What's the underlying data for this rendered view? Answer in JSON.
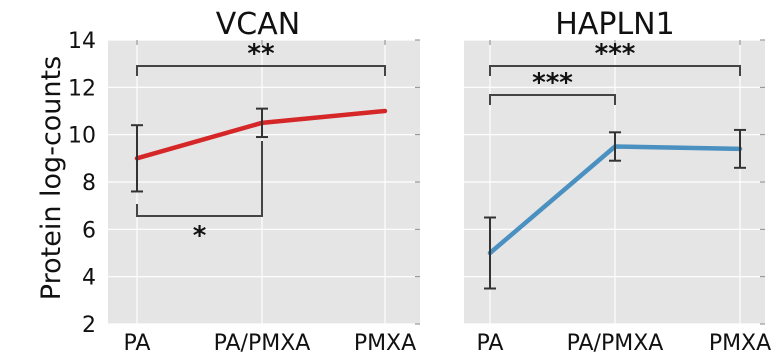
{
  "chart_data": [
    {
      "type": "line",
      "title": "VCAN",
      "ylabel": "Protein log-counts",
      "xlabel": "",
      "categories": [
        "PA",
        "PA/PMXA",
        "PMXA"
      ],
      "values": [
        9.0,
        10.5,
        11.0
      ],
      "error_low": [
        7.6,
        9.9,
        11.0
      ],
      "error_high": [
        10.4,
        11.1,
        11.0
      ],
      "ylim": [
        2,
        14
      ],
      "yticks": [
        "2",
        "4",
        "6",
        "8",
        "10",
        "12",
        "14"
      ],
      "grid": true,
      "color": "#d62728",
      "significance": [
        {
          "from": "PA",
          "to": "PMXA",
          "label": "**",
          "placement": "above"
        },
        {
          "from": "PA",
          "to": "PA/PMXA",
          "label": "*",
          "placement": "below"
        }
      ]
    },
    {
      "type": "line",
      "title": "HAPLN1",
      "xlabel": "",
      "categories": [
        "PA",
        "PA/PMXA",
        "PMXA"
      ],
      "values": [
        5.0,
        9.5,
        9.4
      ],
      "error_low": [
        3.5,
        8.9,
        8.6
      ],
      "error_high": [
        6.5,
        10.1,
        10.2
      ],
      "ylim": [
        2,
        14
      ],
      "grid": true,
      "color": "#4a90c0",
      "significance": [
        {
          "from": "PA",
          "to": "PMXA",
          "label": "***",
          "placement": "above"
        },
        {
          "from": "PA",
          "to": "PA/PMXA",
          "label": "***",
          "placement": "above"
        }
      ]
    }
  ]
}
